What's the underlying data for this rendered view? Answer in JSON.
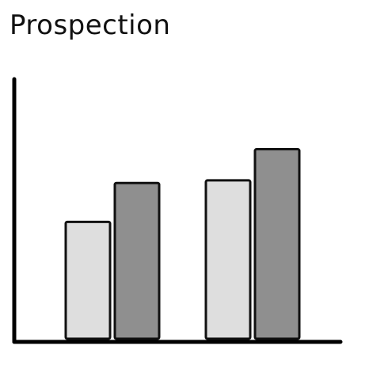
{
  "chart_data": {
    "type": "bar",
    "title": "Prospection",
    "xlabel": "",
    "ylabel": "",
    "categories": [
      "",
      ""
    ],
    "series": [
      {
        "values": [
          45,
          61
        ]
      },
      {
        "values": [
          60,
          73
        ]
      }
    ],
    "ylim": [
      0,
      100
    ],
    "grid": false,
    "colors": {
      "series_light": "#dedede",
      "series_dark": "#8f8f8f",
      "outline": "#111111",
      "axis": "#000000"
    }
  }
}
